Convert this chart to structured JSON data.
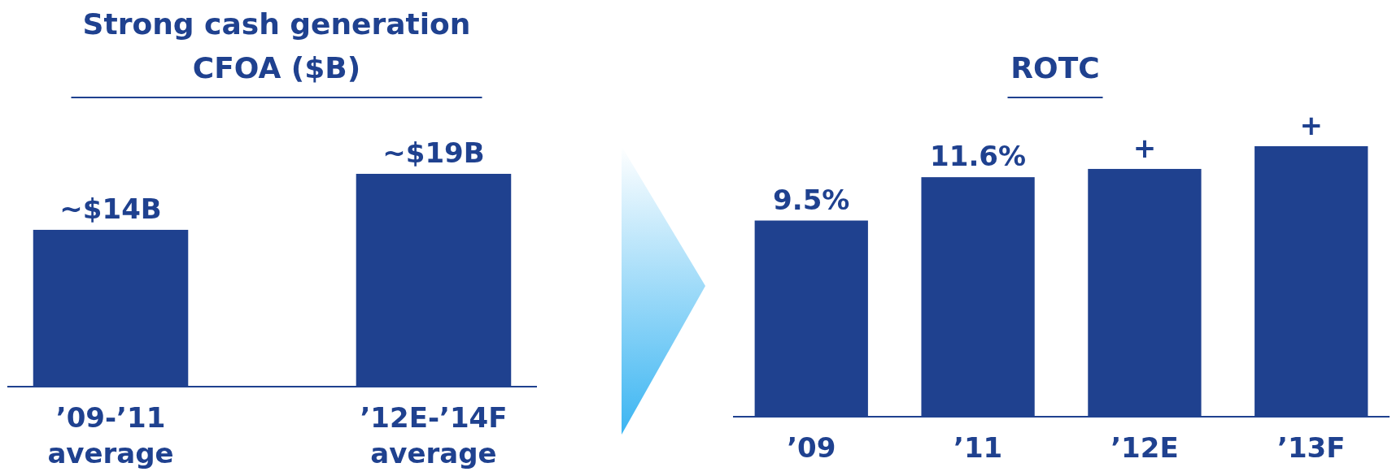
{
  "chart_data": [
    {
      "type": "bar",
      "title": "Strong cash generation",
      "subtitle": "CFOA ($B)",
      "categories": [
        "’09-’11 average",
        "’12E-’14F average"
      ],
      "values": [
        14,
        19
      ],
      "value_labels": [
        "~$14B",
        "~$19B"
      ],
      "color": "#1f418f"
    },
    {
      "type": "bar",
      "title": "ROTC",
      "categories": [
        "’09",
        "’11",
        "’12E",
        "’13F"
      ],
      "values": [
        9.5,
        11.6,
        12.0,
        13.1
      ],
      "value_labels": [
        "9.5%",
        "11.6%",
        "+",
        "+"
      ],
      "color": "#1f418f"
    }
  ]
}
